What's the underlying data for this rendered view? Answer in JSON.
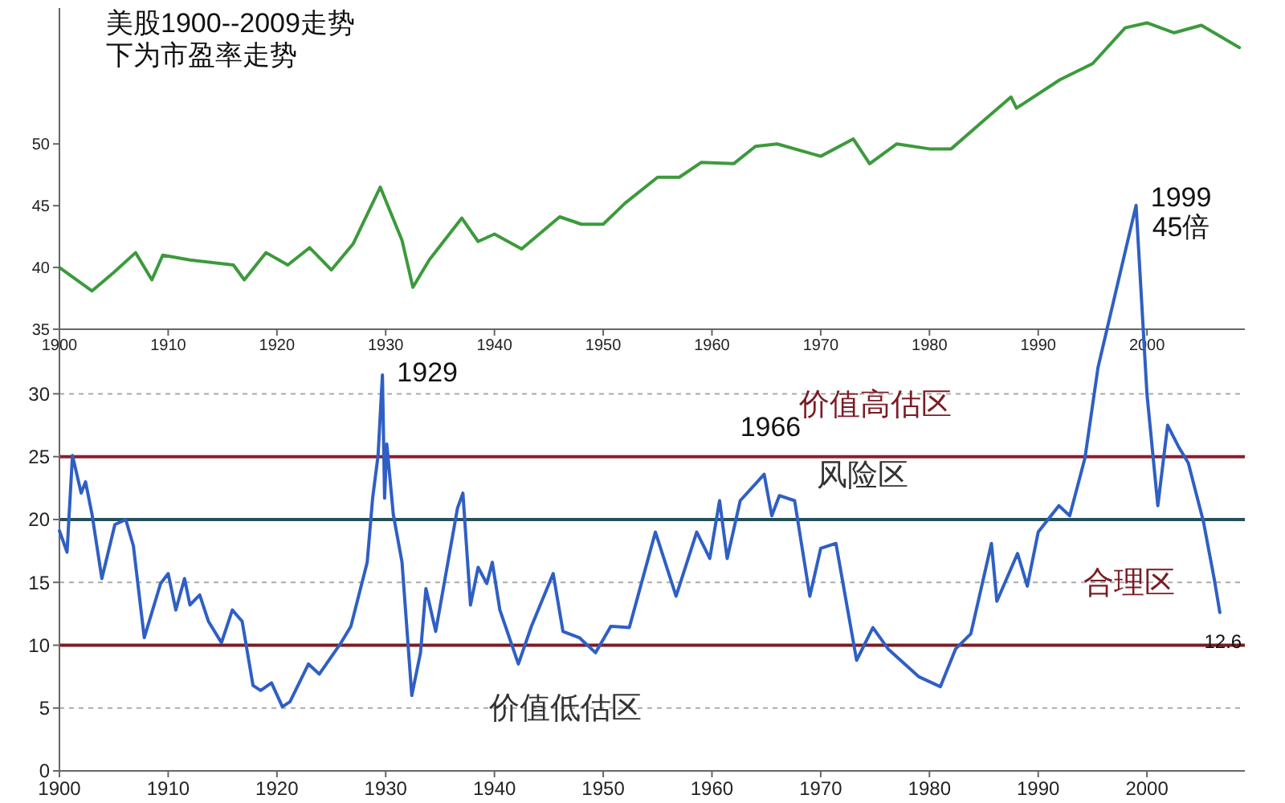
{
  "chart_data": [
    {
      "type": "line",
      "title": "美股1900--2009走势",
      "subtitle": "下为市盈率走势",
      "x": [
        1900,
        1903,
        1905,
        1907,
        1908.5,
        1909.5,
        1912,
        1916,
        1917,
        1919,
        1921,
        1923,
        1925,
        1927,
        1929.5,
        1931.5,
        1932.5,
        1934,
        1937,
        1938.5,
        1940,
        1942.5,
        1946,
        1948,
        1950,
        1952,
        1955,
        1957,
        1959,
        1962,
        1964,
        1966,
        1970,
        1973,
        1974.5,
        1977,
        1980,
        1982,
        1985,
        1987.5,
        1988,
        1992,
        1995,
        1998,
        2000,
        2002.5,
        2005,
        2008.5
      ],
      "series": [
        {
          "color": "#3c9a3c",
          "values": [
            40,
            38.1,
            39.6,
            41.2,
            39,
            41,
            40.6,
            40.2,
            39,
            41.2,
            40.2,
            41.6,
            39.8,
            41.9,
            46.5,
            42.2,
            38.4,
            40.6,
            44,
            42.1,
            42.7,
            41.5,
            44.1,
            43.5,
            43.5,
            45.2,
            47.3,
            47.3,
            48.5,
            48.4,
            49.8,
            50,
            49,
            50.4,
            48.4,
            50,
            49.6,
            49.6,
            51.9,
            53.8,
            52.9,
            55.2,
            56.5,
            59.4,
            59.8,
            59,
            59.6,
            57.8
          ]
        }
      ],
      "xlim": [
        1900,
        2009
      ],
      "ylim": [
        35,
        61
      ],
      "xticks": [
        1900,
        1910,
        1920,
        1930,
        1940,
        1950,
        1960,
        1970,
        1980,
        1990,
        2000
      ],
      "yticks": [
        35,
        40,
        45,
        50
      ],
      "grid": false
    },
    {
      "type": "line",
      "x": [
        1900,
        1900.7,
        1901.2,
        1902,
        1902.4,
        1903,
        1903.9,
        1905.1,
        1906.1,
        1906.8,
        1907.8,
        1909.3,
        1910,
        1910.7,
        1911.5,
        1912,
        1912.9,
        1913.7,
        1914.9,
        1915.9,
        1916.8,
        1917.8,
        1918.5,
        1919.5,
        1920.5,
        1921.2,
        1922.9,
        1923.9,
        1925.9,
        1926.8,
        1928.3,
        1928.8,
        1929.3,
        1929.7,
        1929.9,
        1930.1,
        1930.7,
        1931.5,
        1932.4,
        1933.2,
        1933.7,
        1934.6,
        1936.6,
        1937.1,
        1937.8,
        1938.5,
        1939.3,
        1939.8,
        1940.5,
        1942.2,
        1943.4,
        1945.4,
        1946.3,
        1947.8,
        1949.3,
        1950.7,
        1952.4,
        1954.8,
        1956.7,
        1958.6,
        1959.8,
        1960.7,
        1961.4,
        1962.6,
        1964.8,
        1965.5,
        1966.2,
        1967.6,
        1969,
        1970,
        1971.4,
        1973.3,
        1974.8,
        1976.2,
        1979,
        1981,
        1982.4,
        1983.8,
        1985.7,
        1986.2,
        1988.1,
        1989,
        1990,
        1991.9,
        1992.9,
        1994.3,
        1995.5,
        1999,
        2000,
        2001,
        2001.9,
        2002.9,
        2003.8,
        2005.2,
        2006.2,
        2006.7
      ],
      "series": [
        {
          "color": "#2f5fc4",
          "values": [
            19.1,
            17.4,
            25.1,
            22.1,
            23,
            20.4,
            15.3,
            19.6,
            20,
            17.9,
            10.6,
            14.9,
            15.7,
            12.8,
            15.3,
            13.2,
            14,
            11.9,
            10.2,
            12.8,
            11.9,
            6.8,
            6.4,
            7,
            5.1,
            5.5,
            8.5,
            7.7,
            10.2,
            11.5,
            16.6,
            21.7,
            25.1,
            31.5,
            21.7,
            26,
            20.4,
            16.6,
            6,
            9.4,
            14.5,
            11.1,
            20.9,
            22.1,
            13.2,
            16.2,
            14.9,
            16.6,
            12.8,
            8.5,
            11.5,
            15.7,
            11.1,
            10.6,
            9.4,
            11.5,
            11.4,
            19,
            13.9,
            19,
            16.9,
            21.5,
            16.9,
            21.5,
            23.6,
            20.3,
            21.9,
            21.5,
            13.9,
            17.7,
            18.1,
            8.8,
            11.4,
            9.7,
            7.5,
            6.7,
            9.7,
            10.9,
            18.1,
            13.5,
            17.3,
            14.7,
            19,
            21.1,
            20.3,
            24.9,
            32.1,
            45,
            30,
            21.1,
            27.5,
            25.8,
            24.5,
            19.8,
            15.2,
            12.6
          ]
        }
      ],
      "xlim": [
        1900,
        2009
      ],
      "ylim": [
        0,
        46
      ],
      "xticks": [
        1900,
        1910,
        1920,
        1930,
        1940,
        1950,
        1960,
        1970,
        1980,
        1990,
        2000
      ],
      "yticks": [
        0,
        5,
        10,
        15,
        20,
        25,
        30
      ],
      "grid": "y",
      "ref_lines": [
        {
          "axis": "y",
          "value": 25,
          "color": "#8b1f2e"
        },
        {
          "axis": "y",
          "value": 20,
          "color": "#24505c"
        },
        {
          "axis": "y",
          "value": 10,
          "color": "#7a1c24"
        }
      ],
      "annotations": [
        {
          "text": "1929",
          "x": 1929.7,
          "y": 31.5
        },
        {
          "text": "1966",
          "x": 1964.8,
          "y": 23.6
        },
        {
          "text": "1999\n45倍",
          "x": 1999,
          "y": 45
        },
        {
          "text": "12.6",
          "x": 2006.7,
          "y": 12.6
        },
        "价值高估区",
        "风险区",
        "合理区",
        "价值低估区"
      ]
    }
  ]
}
